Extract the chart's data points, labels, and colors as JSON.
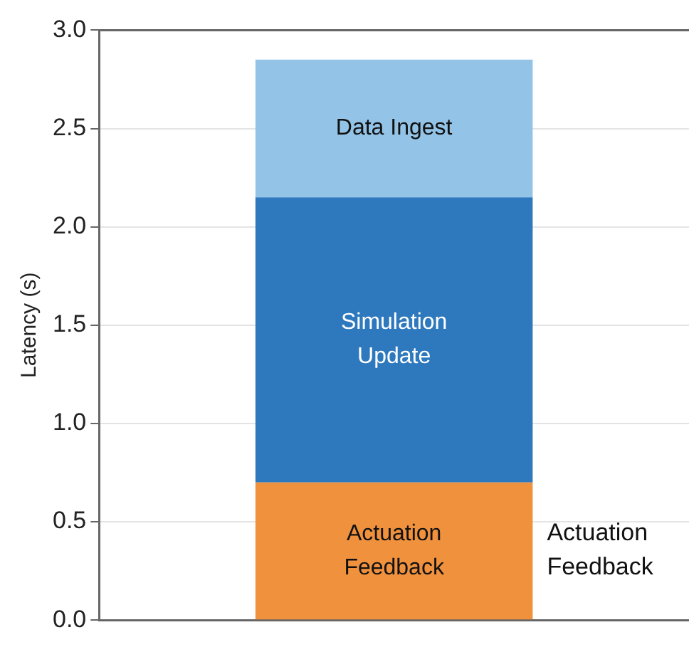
{
  "chart_data": {
    "type": "bar",
    "stacked": true,
    "ylabel": "Latency (s)",
    "categories": [
      null
    ],
    "series": [
      {
        "name": "Actuation Feedback",
        "color": "#f0913e",
        "values": [
          0.7
        ]
      },
      {
        "name": "Simulation Update",
        "color": "#2e78bd",
        "values": [
          1.45
        ]
      },
      {
        "name": "Data Ingest",
        "color": "#93c4e8",
        "values": [
          0.7
        ]
      }
    ],
    "ylim": [
      0,
      3.0
    ],
    "yticks": [
      {
        "value": 0,
        "label": "0.0"
      },
      0.5,
      {
        "value": 1,
        "label": "1.0"
      },
      1.5,
      {
        "value": 2,
        "label": "2.0"
      },
      2.5,
      {
        "value": 3,
        "label": "3.0"
      }
    ],
    "grid": "y",
    "legend": false,
    "annotations": [
      "Actuation Feedback"
    ]
  }
}
